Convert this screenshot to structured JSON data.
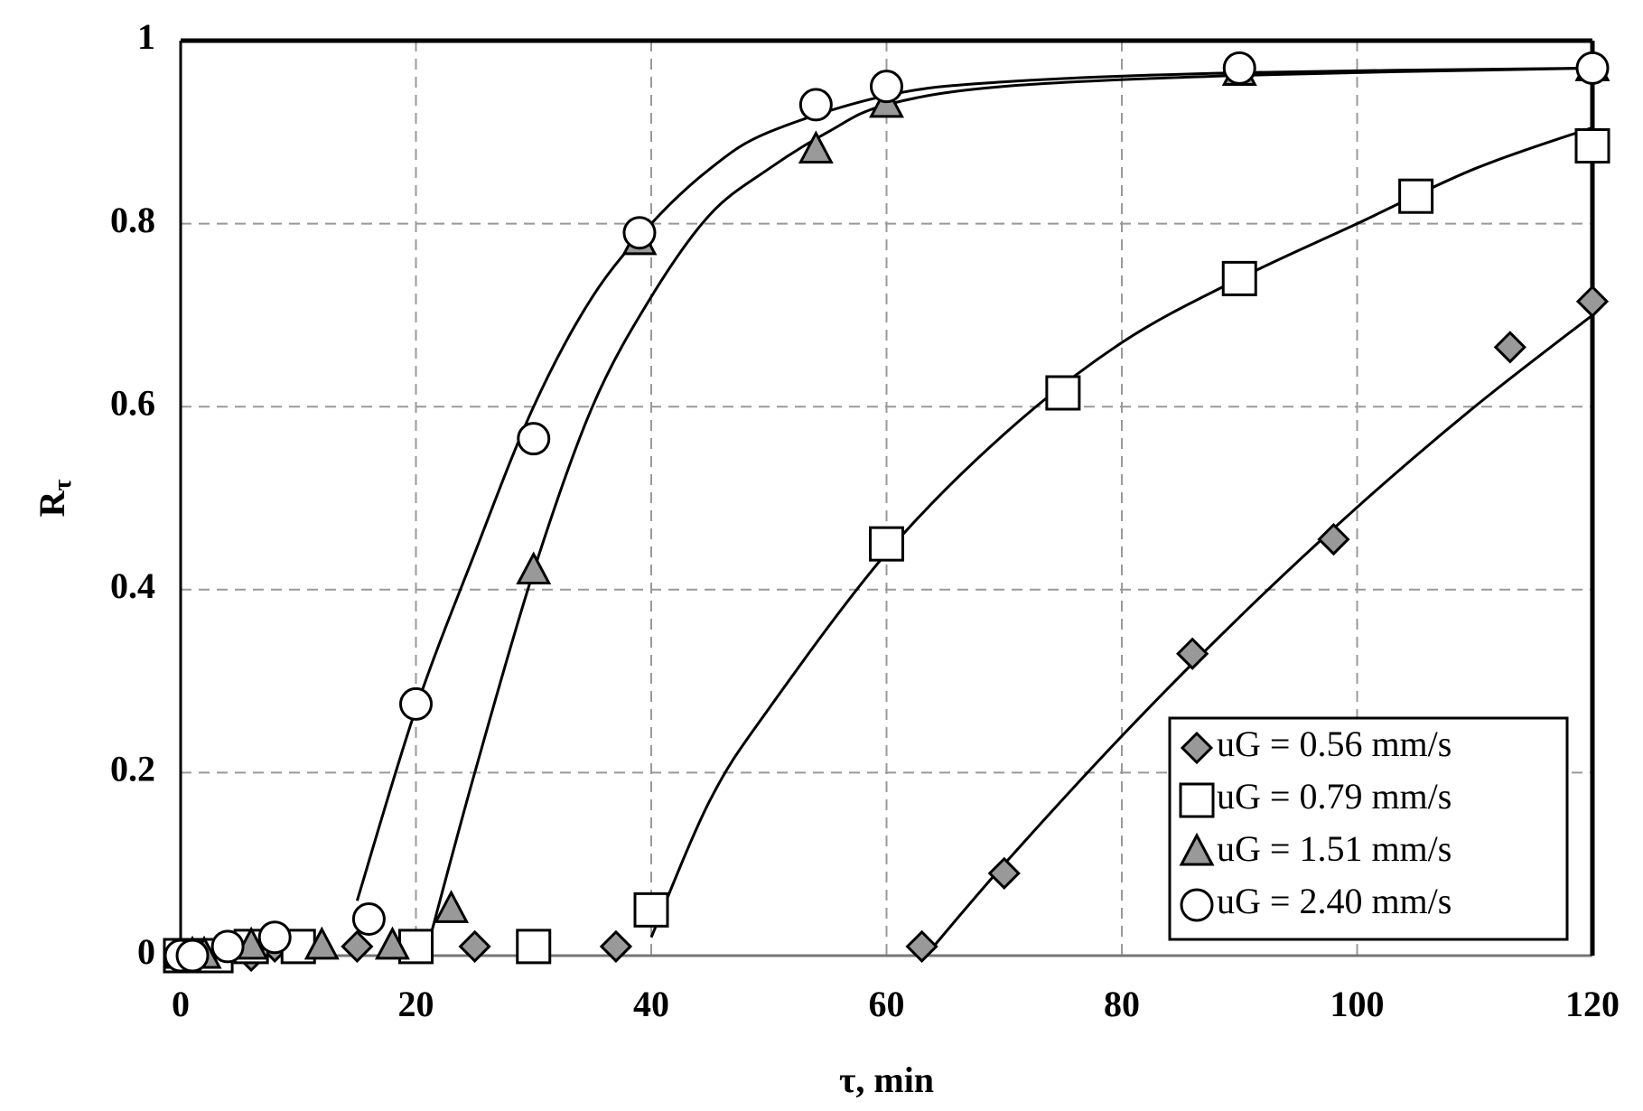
{
  "chart_data": {
    "type": "scatter",
    "xlabel": "τ, min",
    "ylabel": {
      "text": "R",
      "subscript": "τ"
    },
    "xlim": [
      0,
      120
    ],
    "xticks": [
      0,
      20,
      40,
      60,
      80,
      100,
      120
    ],
    "ylim": [
      0,
      1
    ],
    "yticks": [
      0,
      0.2,
      0.4,
      0.6,
      0.8,
      1
    ],
    "grid": true,
    "legend": "lower right",
    "series": [
      {
        "name": "uG = 0.56 mm/s",
        "marker": "diamond",
        "color": "#999999",
        "x": [
          0,
          1,
          2,
          6,
          8,
          15,
          25,
          37,
          63,
          70,
          86,
          98,
          113,
          120
        ],
        "values": [
          0,
          0,
          0,
          0,
          0.01,
          0.01,
          0.01,
          0.01,
          0.01,
          0.09,
          0.33,
          0.455,
          0.665,
          0.715
        ],
        "fit": {
          "x": [
            64,
            70,
            80,
            90,
            100,
            110,
            120
          ],
          "values": [
            0.01,
            0.1,
            0.24,
            0.37,
            0.49,
            0.6,
            0.7
          ]
        }
      },
      {
        "name": "uG = 0.79 mm/s",
        "marker": "square",
        "color": "#ffffff",
        "x": [
          0,
          2,
          3,
          6,
          10,
          20,
          30,
          40,
          60,
          75,
          90,
          105,
          120
        ],
        "values": [
          0,
          0,
          0,
          0.01,
          0.01,
          0.01,
          0.01,
          0.05,
          0.45,
          0.615,
          0.74,
          0.83,
          0.885
        ],
        "fit": {
          "x": [
            40,
            45,
            50,
            60,
            70,
            80,
            90,
            100,
            110,
            120
          ],
          "values": [
            0.02,
            0.17,
            0.27,
            0.44,
            0.57,
            0.67,
            0.74,
            0.8,
            0.86,
            0.905
          ]
        }
      },
      {
        "name": "uG = 1.51 mm/s",
        "marker": "triangle",
        "color": "#999999",
        "x": [
          0,
          1,
          2,
          6,
          12,
          18,
          23,
          30,
          39,
          54,
          60,
          90,
          120
        ],
        "values": [
          0,
          0,
          0,
          0.01,
          0.01,
          0.01,
          0.05,
          0.42,
          0.78,
          0.88,
          0.93,
          0.965,
          0.97
        ],
        "fit": {
          "x": [
            21,
            25,
            30,
            35,
            40,
            45,
            50,
            55,
            60,
            70,
            90,
            120
          ],
          "values": [
            0.01,
            0.2,
            0.42,
            0.6,
            0.72,
            0.81,
            0.86,
            0.9,
            0.93,
            0.95,
            0.962,
            0.97
          ]
        }
      },
      {
        "name": "uG = 2.40 mm/s",
        "marker": "circle",
        "color": "#ffffff",
        "x": [
          0,
          1,
          4,
          8,
          16,
          20,
          30,
          39,
          54,
          60,
          90,
          120
        ],
        "values": [
          0,
          0,
          0.01,
          0.02,
          0.04,
          0.275,
          0.565,
          0.79,
          0.93,
          0.95,
          0.97,
          0.97
        ],
        "fit": {
          "x": [
            15,
            20,
            25,
            30,
            35,
            40,
            45,
            50,
            60,
            70,
            90,
            120
          ],
          "values": [
            0.06,
            0.27,
            0.44,
            0.6,
            0.72,
            0.8,
            0.86,
            0.9,
            0.94,
            0.955,
            0.965,
            0.97
          ]
        }
      }
    ]
  }
}
